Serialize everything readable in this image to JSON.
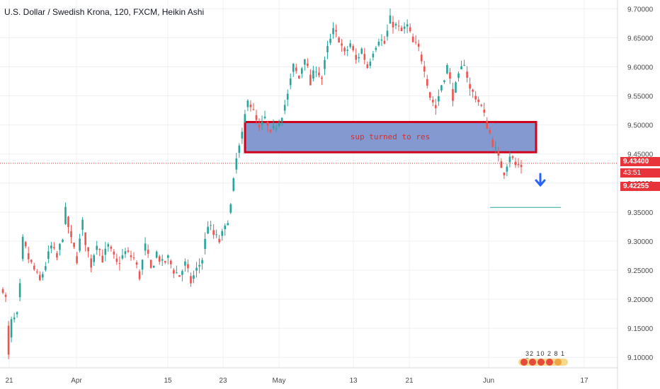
{
  "chart_data": {
    "type": "candlestick",
    "title": "U.S. Dollar / Swedish Krona, 120, FXCM, Heikin Ashi",
    "x_ticks": [
      "21",
      "Apr",
      "15",
      "23",
      "May",
      "13",
      "21",
      "Jun",
      "17"
    ],
    "y_ticks": [
      "9.10000",
      "9.15000",
      "9.20000",
      "9.25000",
      "9.30000",
      "9.35000",
      "9.40000",
      "9.45000",
      "9.50000",
      "9.55000",
      "9.60000",
      "9.65000",
      "9.70000"
    ],
    "ylim": [
      9.082,
      9.715
    ],
    "grid": true,
    "up_color": "#26a69a",
    "down_color": "#ef5350",
    "series_path": [
      [
        0,
        9.22
      ],
      [
        1,
        9.2
      ],
      [
        2,
        9.1
      ],
      [
        3,
        9.16
      ],
      [
        5,
        9.17
      ],
      [
        6,
        9.22
      ],
      [
        7,
        9.3
      ],
      [
        9,
        9.27
      ],
      [
        11,
        9.25
      ],
      [
        13,
        9.23
      ],
      [
        15,
        9.26
      ],
      [
        17,
        9.29
      ],
      [
        19,
        9.27
      ],
      [
        21,
        9.31
      ],
      [
        22,
        9.35
      ],
      [
        24,
        9.3
      ],
      [
        26,
        9.27
      ],
      [
        28,
        9.33
      ],
      [
        29,
        9.3
      ],
      [
        31,
        9.26
      ],
      [
        33,
        9.3
      ],
      [
        35,
        9.27
      ],
      [
        37,
        9.29
      ],
      [
        40,
        9.26
      ],
      [
        43,
        9.28
      ],
      [
        46,
        9.27
      ],
      [
        48,
        9.24
      ],
      [
        50,
        9.29
      ],
      [
        52,
        9.25
      ],
      [
        54,
        9.28
      ],
      [
        56,
        9.26
      ],
      [
        58,
        9.27
      ],
      [
        60,
        9.25
      ],
      [
        62,
        9.24
      ],
      [
        64,
        9.26
      ],
      [
        66,
        9.23
      ],
      [
        68,
        9.25
      ],
      [
        70,
        9.27
      ],
      [
        72,
        9.33
      ],
      [
        74,
        9.31
      ],
      [
        76,
        9.3
      ],
      [
        78,
        9.32
      ],
      [
        80,
        9.36
      ],
      [
        82,
        9.44
      ],
      [
        84,
        9.48
      ],
      [
        86,
        9.55
      ],
      [
        88,
        9.52
      ],
      [
        90,
        9.49
      ],
      [
        92,
        9.51
      ],
      [
        94,
        9.48
      ],
      [
        96,
        9.5
      ],
      [
        98,
        9.52
      ],
      [
        100,
        9.55
      ],
      [
        102,
        9.6
      ],
      [
        104,
        9.58
      ],
      [
        106,
        9.62
      ],
      [
        108,
        9.57
      ],
      [
        110,
        9.6
      ],
      [
        112,
        9.58
      ],
      [
        114,
        9.63
      ],
      [
        116,
        9.66
      ],
      [
        118,
        9.65
      ],
      [
        120,
        9.62
      ],
      [
        122,
        9.64
      ],
      [
        124,
        9.61
      ],
      [
        126,
        9.63
      ],
      [
        128,
        9.6
      ],
      [
        130,
        9.63
      ],
      [
        132,
        9.65
      ],
      [
        134,
        9.64
      ],
      [
        136,
        9.68
      ],
      [
        138,
        9.67
      ],
      [
        140,
        9.66
      ],
      [
        142,
        9.67
      ],
      [
        144,
        9.64
      ],
      [
        146,
        9.63
      ],
      [
        148,
        9.6
      ],
      [
        150,
        9.55
      ],
      [
        152,
        9.53
      ],
      [
        154,
        9.57
      ],
      [
        156,
        9.6
      ],
      [
        158,
        9.55
      ],
      [
        160,
        9.58
      ],
      [
        162,
        9.61
      ],
      [
        164,
        9.56
      ],
      [
        166,
        9.55
      ],
      [
        168,
        9.53
      ],
      [
        170,
        9.5
      ],
      [
        172,
        9.47
      ],
      [
        174,
        9.44
      ],
      [
        176,
        9.42
      ],
      [
        178,
        9.45
      ],
      [
        180,
        9.43
      ],
      [
        182,
        9.43
      ]
    ],
    "horizontal_line": {
      "label": "9.43400",
      "value": 9.434,
      "color": "#e8333a"
    },
    "price_labels": {
      "last": "9.43400",
      "timer": "43:51",
      "bid": "9.42255"
    },
    "zone": {
      "label": "sup turned to res",
      "y_top": 9.505,
      "y_bottom": 9.453,
      "fill": "#6f87c7",
      "border": "#d0021b"
    },
    "target_line": {
      "value": 9.358,
      "color": "#26a69a"
    },
    "arrow": {
      "direction": "down",
      "color": "#2962ff"
    }
  },
  "badge": {
    "numbers": "32 10 2 8 1 5"
  }
}
